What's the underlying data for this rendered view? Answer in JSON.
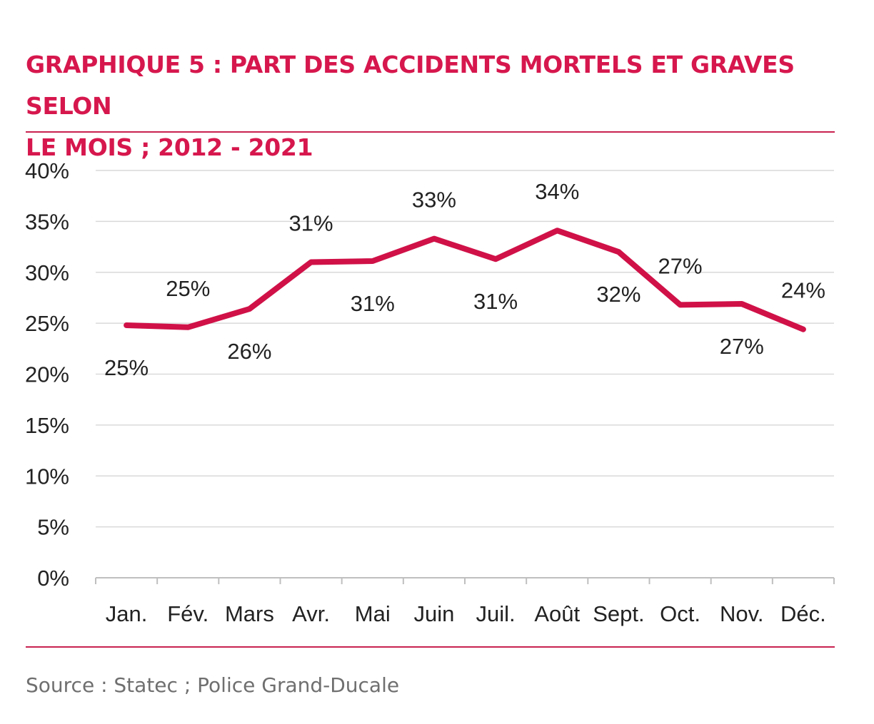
{
  "title_line1": "GRAPHIQUE 5 : PART DES ACCIDENTS MORTELS ET GRAVES SELON",
  "title_line2": "LE MOIS ; 2012 - 2021",
  "source": "Source : Statec ; Police Grand-Ducale",
  "colors": {
    "accent": "#d6174d",
    "line": "#d01148",
    "grid": "#d9d9d9",
    "axis": "#bfbfbf",
    "source_text": "#6f6f6f"
  },
  "chart_data": {
    "type": "line",
    "title": "GRAPHIQUE 5 : PART DES ACCIDENTS MORTELS ET GRAVES SELON LE MOIS ; 2012 - 2021",
    "xlabel": "",
    "ylabel": "",
    "categories": [
      "Jan.",
      "Fév.",
      "Mars",
      "Avr.",
      "Mai",
      "Juin",
      "Juil.",
      "Août",
      "Sept.",
      "Oct.",
      "Nov.",
      "Déc."
    ],
    "values": [
      24.8,
      24.6,
      26.4,
      31.0,
      31.1,
      33.3,
      31.3,
      34.1,
      32.0,
      26.8,
      26.9,
      24.4
    ],
    "data_labels": [
      "25%",
      "25%",
      "26%",
      "31%",
      "31%",
      "33%",
      "31%",
      "34%",
      "32%",
      "27%",
      "27%",
      "24%"
    ],
    "label_position": [
      "below",
      "above",
      "below",
      "above",
      "below",
      "above",
      "below",
      "above",
      "below",
      "above",
      "below",
      "above"
    ],
    "ylim": [
      0,
      40
    ],
    "yticks": [
      0,
      5,
      10,
      15,
      20,
      25,
      30,
      35,
      40
    ],
    "ytick_labels": [
      "0%",
      "5%",
      "10%",
      "15%",
      "20%",
      "25%",
      "30%",
      "35%",
      "40%"
    ],
    "grid": true,
    "legend": "none"
  }
}
